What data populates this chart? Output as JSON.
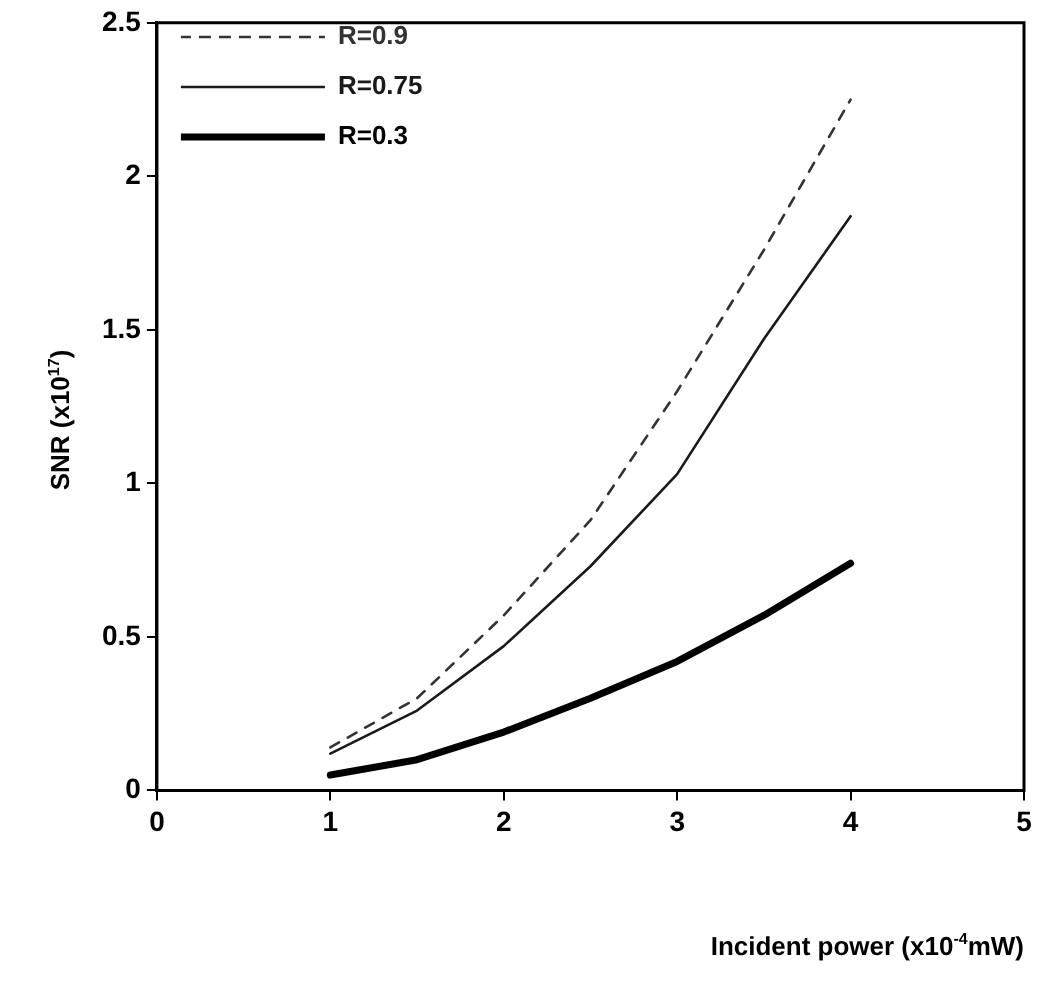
{
  "chart_data": {
    "type": "line",
    "xlabel": "Incident power (x10$^{-4}$mW)",
    "ylabel": "SNR (x10$^{17}$)",
    "x": [
      1,
      1.5,
      2,
      2.5,
      3,
      3.5,
      4
    ],
    "series": [
      {
        "name": "R=0.9",
        "color": "#333333",
        "line_style": "dashed",
        "values": [
          0.14,
          0.3,
          0.57,
          0.88,
          1.3,
          1.76,
          2.25
        ]
      },
      {
        "name": "R=0.75",
        "color": "#1a1a1a",
        "line_style": "solid",
        "values": [
          0.12,
          0.26,
          0.47,
          0.73,
          1.03,
          1.47,
          1.87
        ]
      },
      {
        "name": "R=0.3",
        "color": "#000000",
        "line_style": "solid",
        "values": [
          0.05,
          0.1,
          0.19,
          0.3,
          0.42,
          0.57,
          0.74
        ]
      }
    ],
    "xlim": [
      0,
      5
    ],
    "xticks": [
      0,
      1,
      2,
      3,
      4,
      5
    ],
    "ylim": [
      0,
      2.5
    ],
    "yticks": [
      0,
      0.5,
      1,
      1.5,
      2,
      2.5
    ],
    "grid": false,
    "legend": "top left",
    "marker": "none"
  }
}
